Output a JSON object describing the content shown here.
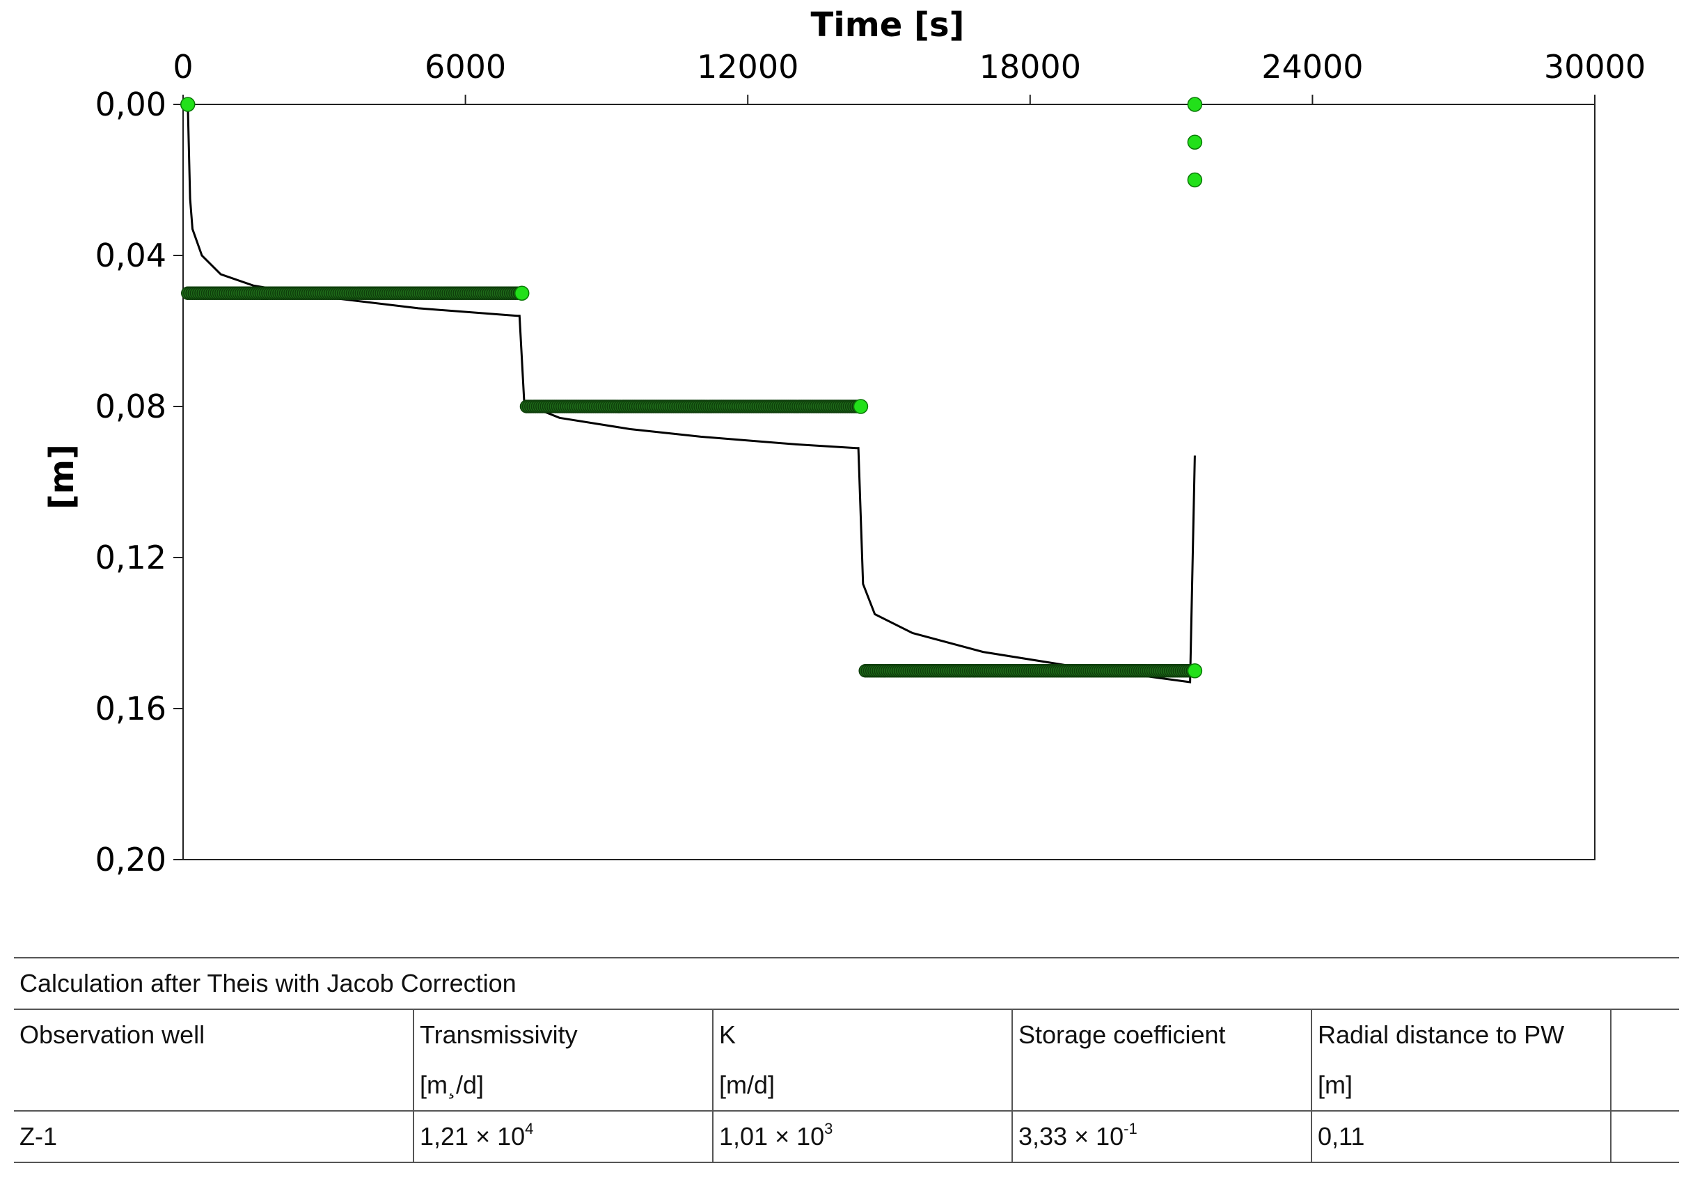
{
  "chart_data": {
    "type": "scatter",
    "xlabel": "Time [s]",
    "ylabel": "[m]",
    "xlim": [
      0,
      30000
    ],
    "ylim": [
      0.2,
      0.0
    ],
    "y_inverted": true,
    "x_axis_position": "top",
    "x_ticks": [
      0,
      6000,
      12000,
      18000,
      24000,
      30000
    ],
    "x_tick_labels": [
      "0",
      "6000",
      "12000",
      "18000",
      "24000",
      "30000"
    ],
    "y_ticks": [
      0.0,
      0.04,
      0.08,
      0.12,
      0.16,
      0.2
    ],
    "y_tick_labels": [
      "0,00",
      "0,04",
      "0,08",
      "0,12",
      "0,16",
      "0,20"
    ],
    "grid": false,
    "colors": {
      "observed_points": "#1f6b1a",
      "observed_points_dark": "#0d3d0a",
      "highlight_points": "#22e01a",
      "model_line": "#000000"
    },
    "series": [
      {
        "kind": "observed",
        "points": [
          [
            100,
            0.0
          ],
          [
            100,
            0.05
          ],
          [
            7200,
            0.05
          ],
          [
            7300,
            0.08
          ],
          [
            14400,
            0.08
          ],
          [
            14500,
            0.15
          ],
          [
            21500,
            0.15
          ],
          [
            21500,
            0.0
          ],
          [
            21500,
            0.01
          ],
          [
            21500,
            0.02
          ]
        ],
        "dense_segments": [
          {
            "x_from": 100,
            "x_to": 7200,
            "y": 0.05
          },
          {
            "x_from": 7300,
            "x_to": 14400,
            "y": 0.08
          },
          {
            "x_from": 14500,
            "x_to": 21500,
            "y": 0.15
          }
        ],
        "highlight_points": [
          [
            100,
            0.0
          ],
          [
            7200,
            0.05
          ],
          [
            14400,
            0.08
          ],
          [
            21500,
            0.15
          ],
          [
            21500,
            0.0
          ],
          [
            21500,
            0.01
          ],
          [
            21500,
            0.02
          ]
        ]
      },
      {
        "kind": "model",
        "points": [
          [
            100,
            0.0
          ],
          [
            120,
            0.01
          ],
          [
            150,
            0.025
          ],
          [
            200,
            0.033
          ],
          [
            400,
            0.04
          ],
          [
            800,
            0.045
          ],
          [
            1500,
            0.048
          ],
          [
            3000,
            0.051
          ],
          [
            5000,
            0.054
          ],
          [
            7100,
            0.056
          ],
          [
            7150,
            0.056
          ],
          [
            7250,
            0.079
          ],
          [
            7400,
            0.08
          ],
          [
            8000,
            0.083
          ],
          [
            9500,
            0.086
          ],
          [
            11000,
            0.088
          ],
          [
            13000,
            0.09
          ],
          [
            14300,
            0.091
          ],
          [
            14350,
            0.091
          ],
          [
            14450,
            0.127
          ],
          [
            14700,
            0.135
          ],
          [
            15500,
            0.14
          ],
          [
            17000,
            0.145
          ],
          [
            19000,
            0.149
          ],
          [
            21400,
            0.153
          ],
          [
            21500,
            0.093
          ]
        ]
      }
    ]
  },
  "table": {
    "title": "Calculation after Theis with Jacob Correction",
    "headers": [
      "Observation well",
      "Transmissivity",
      "K",
      "Storage coefficient",
      "Radial distance to PW"
    ],
    "units": [
      "",
      "[m¸/d]",
      "[m/d]",
      "",
      "[m]"
    ],
    "rows": [
      {
        "observation_well": "Z-1",
        "transmissivity": {
          "mantissa": "1,21 × 10",
          "exponent": "4"
        },
        "k": {
          "mantissa": "1,01 × 10",
          "exponent": "3"
        },
        "storage_coefficient": {
          "mantissa": "3,33 × 10",
          "exponent": "-1"
        },
        "radial_distance": "0,11"
      }
    ]
  }
}
